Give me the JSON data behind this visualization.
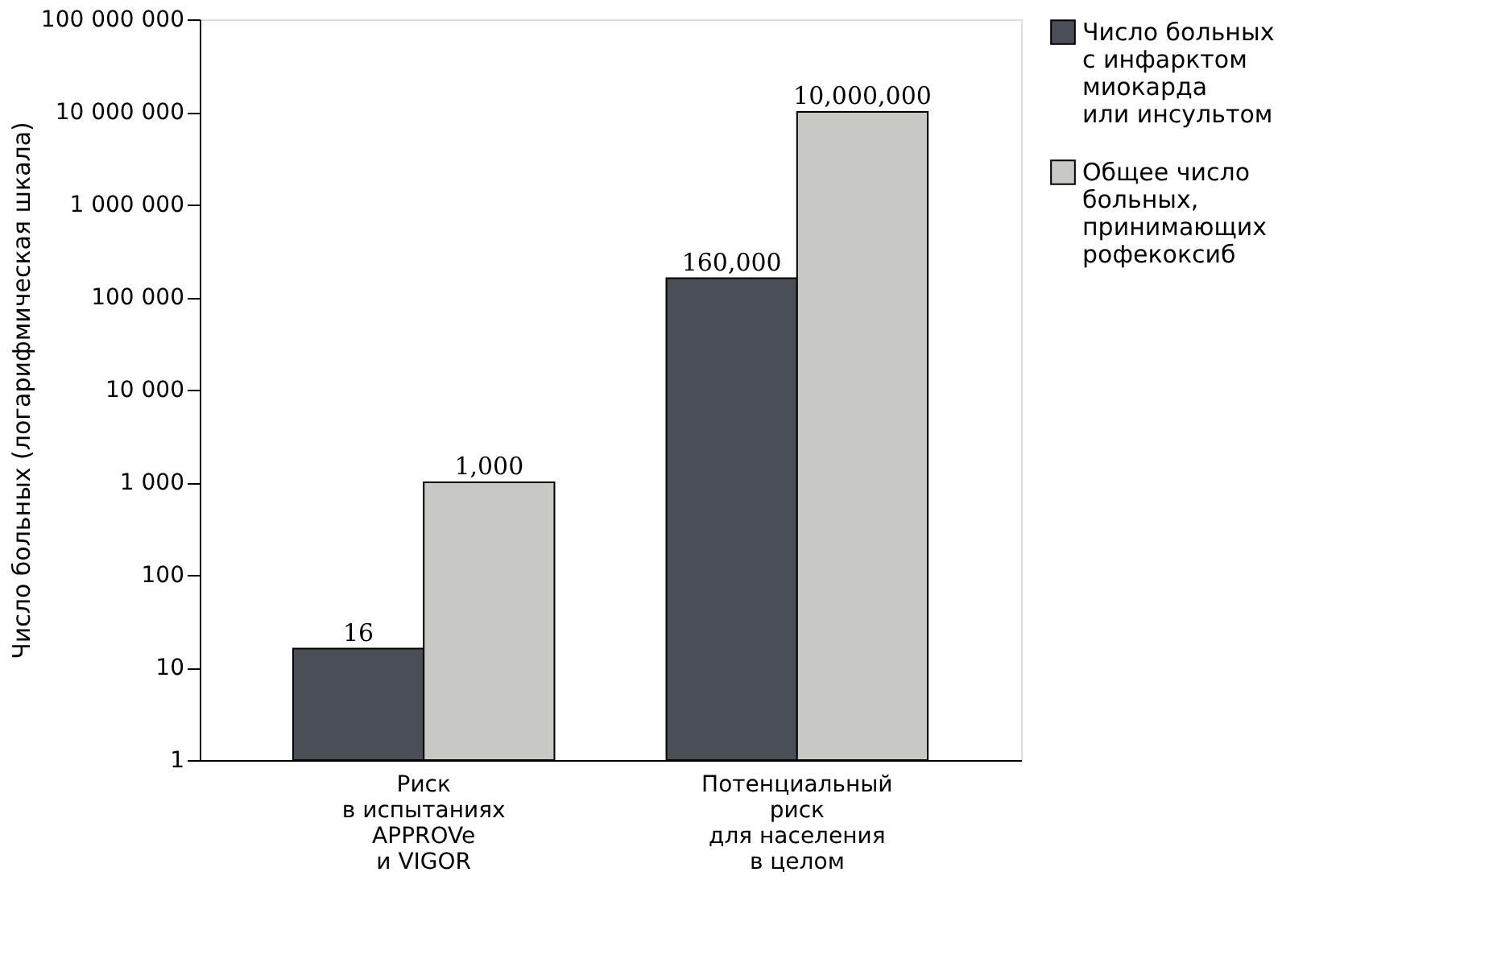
{
  "chart_data": {
    "type": "bar",
    "ylabel": "Число больных (логарифмическая шкала)",
    "categories": [
      "Риск\nв испытаниях\nAPPROVe\nи VIGOR",
      "Потенциальный\nриск\nдля населения\nв целом"
    ],
    "series": [
      {
        "name": "Число больных\nс инфарктом\nмиокарда\nили инсультом",
        "color": "#4a4f57",
        "values": [
          16,
          160000
        ],
        "value_labels": [
          "16",
          "160,000"
        ]
      },
      {
        "name": "Общее число\nбольных,\nпринимающих\nрофекоксиб",
        "color": "#c8c8c4",
        "values": [
          1000,
          10000000
        ],
        "value_labels": [
          "1,000",
          "10,000,000"
        ]
      }
    ],
    "log": "y",
    "ylim": [
      1,
      100000000
    ],
    "yticks": [
      1,
      10,
      100,
      {
        "value": 1000,
        "label": "1 000"
      },
      {
        "value": 10000,
        "label": "10 000"
      },
      {
        "value": 100000,
        "label": "100 000"
      },
      {
        "value": 1000000,
        "label": "1 000 000"
      },
      {
        "value": 10000000,
        "label": "10 000 000"
      },
      {
        "value": 100000000,
        "label": "100 000 000"
      }
    ],
    "grid": false,
    "legend": "right"
  }
}
